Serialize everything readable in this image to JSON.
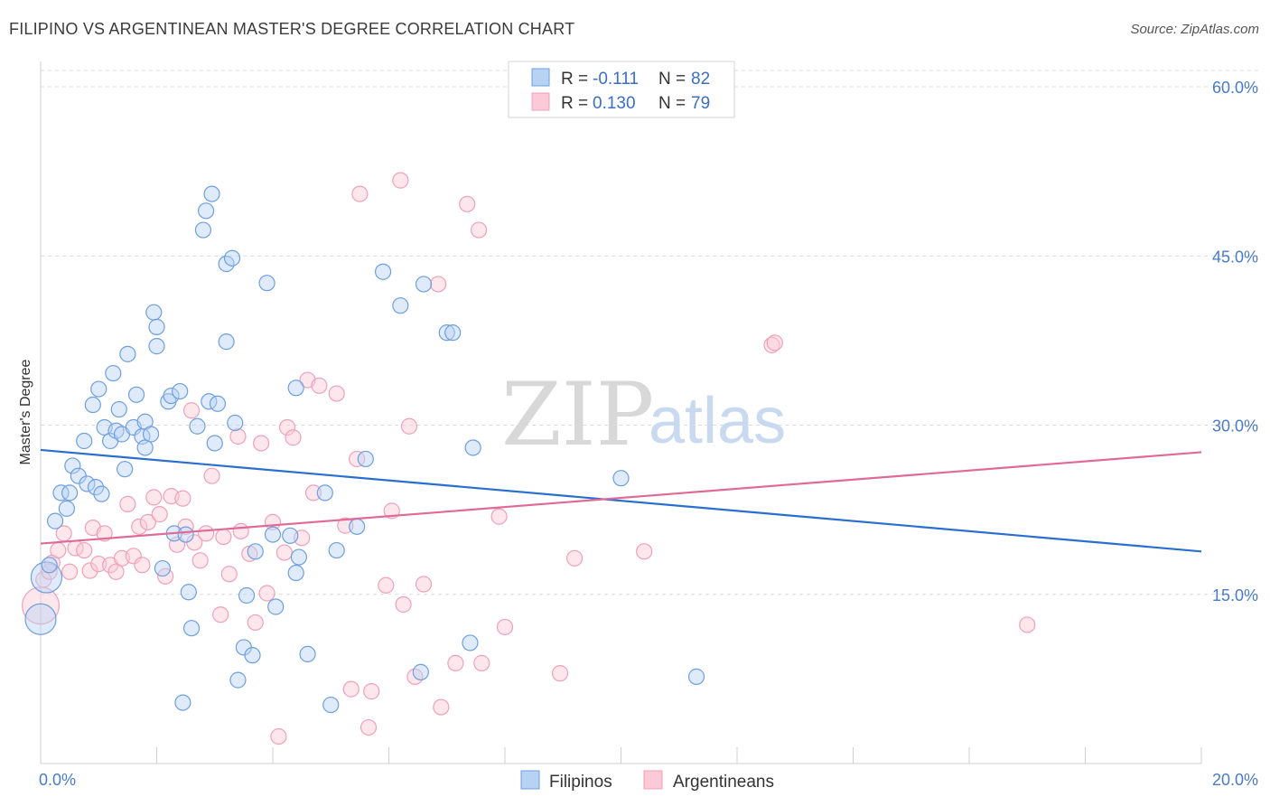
{
  "title": "FILIPINO VS ARGENTINEAN MASTER'S DEGREE CORRELATION CHART",
  "source": "Source: ZipAtlas.com",
  "chart_data": {
    "type": "scatter",
    "title": "FILIPINO VS ARGENTINEAN MASTER'S DEGREE CORRELATION CHART",
    "xlabel": "",
    "ylabel": "Master's Degree",
    "xlim": [
      0,
      20
    ],
    "ylim": [
      0,
      60
    ],
    "x_tick_labels": [
      "0.0%",
      "20.0%"
    ],
    "y_ticks": [
      15,
      30,
      45,
      60
    ],
    "y_tick_labels": [
      "15.0%",
      "30.0%",
      "45.0%",
      "60.0%"
    ],
    "grid": true,
    "legend_position": "top-center",
    "colors": {
      "filipinos": "#6e9fe0",
      "argentineans": "#f0a0ba",
      "filipinos_line": "#2a6fd0",
      "argentineans_line": "#e06a96"
    },
    "legend": [
      {
        "r_label": "R = ",
        "r_value": "-0.111",
        "n_label": "N = ",
        "n_value": "82"
      },
      {
        "r_label": "R = ",
        "r_value": "0.130",
        "n_label": "N = ",
        "n_value": "79"
      }
    ],
    "bottom_legend": [
      "Filipinos",
      "Argentineans"
    ],
    "watermark": {
      "zip": "ZIP",
      "atlas": "atlas"
    },
    "series": [
      {
        "name": "Filipinos",
        "trend": {
          "x": [
            0,
            20
          ],
          "y": [
            27.8,
            18.8
          ]
        },
        "points": [
          [
            0.0,
            12.8,
            2
          ],
          [
            0.1,
            16.5,
            2
          ],
          [
            0.15,
            17.6,
            1
          ],
          [
            0.25,
            21.5,
            1
          ],
          [
            0.35,
            24.0,
            1
          ],
          [
            0.45,
            22.6,
            1
          ],
          [
            0.5,
            24.0,
            1
          ],
          [
            0.55,
            26.4,
            1
          ],
          [
            0.65,
            25.5,
            1
          ],
          [
            0.75,
            28.6,
            1
          ],
          [
            0.8,
            24.8,
            1
          ],
          [
            0.9,
            31.8,
            1
          ],
          [
            0.95,
            24.5,
            1
          ],
          [
            1.0,
            33.2,
            1
          ],
          [
            1.05,
            23.9,
            1
          ],
          [
            1.1,
            29.8,
            1
          ],
          [
            1.2,
            28.6,
            1
          ],
          [
            1.25,
            34.6,
            1
          ],
          [
            1.3,
            29.5,
            1
          ],
          [
            1.35,
            31.4,
            1
          ],
          [
            1.4,
            29.2,
            1
          ],
          [
            1.45,
            26.1,
            1
          ],
          [
            1.5,
            36.3,
            1
          ],
          [
            1.6,
            29.8,
            1
          ],
          [
            1.65,
            32.7,
            1
          ],
          [
            1.75,
            29.0,
            1
          ],
          [
            1.8,
            28.0,
            1
          ],
          [
            1.8,
            30.3,
            1
          ],
          [
            1.9,
            29.2,
            1
          ],
          [
            1.95,
            40.0,
            1
          ],
          [
            2.0,
            37.0,
            1
          ],
          [
            2.0,
            38.7,
            1
          ],
          [
            2.1,
            17.3,
            1
          ],
          [
            2.2,
            32.1,
            1
          ],
          [
            2.25,
            32.6,
            1
          ],
          [
            2.3,
            20.4,
            1
          ],
          [
            2.4,
            33.0,
            1
          ],
          [
            2.45,
            5.4,
            1
          ],
          [
            2.5,
            20.3,
            1
          ],
          [
            2.55,
            15.2,
            1
          ],
          [
            2.6,
            12.0,
            1
          ],
          [
            2.7,
            29.9,
            1
          ],
          [
            2.8,
            47.3,
            1
          ],
          [
            2.85,
            49.0,
            1
          ],
          [
            2.9,
            32.1,
            1
          ],
          [
            2.95,
            50.5,
            1
          ],
          [
            3.0,
            28.4,
            1
          ],
          [
            3.05,
            31.9,
            1
          ],
          [
            3.2,
            37.4,
            1
          ],
          [
            3.2,
            44.3,
            1
          ],
          [
            3.3,
            44.8,
            1
          ],
          [
            3.35,
            30.2,
            1
          ],
          [
            3.4,
            7.4,
            1
          ],
          [
            3.5,
            10.3,
            1
          ],
          [
            3.55,
            14.9,
            1
          ],
          [
            3.65,
            9.6,
            1
          ],
          [
            3.7,
            18.8,
            1
          ],
          [
            3.9,
            42.6,
            1
          ],
          [
            4.0,
            20.3,
            1
          ],
          [
            4.05,
            13.9,
            1
          ],
          [
            4.3,
            20.2,
            1
          ],
          [
            4.4,
            16.9,
            1
          ],
          [
            4.4,
            33.3,
            1
          ],
          [
            4.45,
            18.3,
            1
          ],
          [
            4.6,
            9.7,
            1
          ],
          [
            4.9,
            24.0,
            1
          ],
          [
            5.0,
            5.2,
            1
          ],
          [
            5.1,
            18.9,
            1
          ],
          [
            5.45,
            21.0,
            1
          ],
          [
            5.6,
            27.0,
            1
          ],
          [
            5.9,
            43.6,
            1
          ],
          [
            6.2,
            40.6,
            1
          ],
          [
            6.55,
            8.1,
            1
          ],
          [
            6.6,
            42.5,
            1
          ],
          [
            7.0,
            38.2,
            1
          ],
          [
            7.1,
            38.2,
            1
          ],
          [
            7.4,
            10.7,
            1
          ],
          [
            7.45,
            28.0,
            1
          ],
          [
            10.0,
            25.3,
            1
          ],
          [
            11.3,
            7.7,
            1
          ]
        ]
      },
      {
        "name": "Argentineans",
        "trend": {
          "x": [
            0,
            20
          ],
          "y": [
            19.5,
            27.6
          ]
        },
        "points": [
          [
            0.0,
            14.0,
            2.4
          ],
          [
            0.05,
            16.3,
            1
          ],
          [
            0.15,
            17.0,
            1
          ],
          [
            0.2,
            17.8,
            1
          ],
          [
            0.3,
            18.9,
            1
          ],
          [
            0.4,
            20.4,
            1
          ],
          [
            0.5,
            17.0,
            1
          ],
          [
            0.6,
            19.1,
            1
          ],
          [
            0.75,
            18.9,
            1
          ],
          [
            0.85,
            17.1,
            1
          ],
          [
            0.9,
            20.9,
            1
          ],
          [
            1.0,
            17.7,
            1
          ],
          [
            1.1,
            20.4,
            1
          ],
          [
            1.2,
            17.6,
            1
          ],
          [
            1.3,
            17.0,
            1
          ],
          [
            1.4,
            18.2,
            1
          ],
          [
            1.5,
            23.0,
            1
          ],
          [
            1.6,
            18.4,
            1
          ],
          [
            1.7,
            21.0,
            1
          ],
          [
            1.75,
            17.6,
            1
          ],
          [
            1.85,
            21.4,
            1
          ],
          [
            1.95,
            23.6,
            1
          ],
          [
            2.05,
            22.1,
            1
          ],
          [
            2.15,
            16.6,
            1
          ],
          [
            2.25,
            23.7,
            1
          ],
          [
            2.35,
            19.4,
            1
          ],
          [
            2.45,
            23.5,
            1
          ],
          [
            2.5,
            21.0,
            1
          ],
          [
            2.6,
            31.3,
            1
          ],
          [
            2.65,
            19.6,
            1
          ],
          [
            2.75,
            18.0,
            1
          ],
          [
            2.85,
            20.4,
            1
          ],
          [
            2.95,
            25.5,
            1
          ],
          [
            3.1,
            13.2,
            1
          ],
          [
            3.15,
            20.1,
            1
          ],
          [
            3.25,
            16.8,
            1
          ],
          [
            3.4,
            29.0,
            1
          ],
          [
            3.45,
            20.6,
            1
          ],
          [
            3.6,
            18.6,
            1
          ],
          [
            3.7,
            12.5,
            1
          ],
          [
            3.8,
            28.4,
            1
          ],
          [
            3.9,
            15.1,
            1
          ],
          [
            4.0,
            21.4,
            1
          ],
          [
            4.1,
            2.4,
            1
          ],
          [
            4.2,
            18.7,
            1
          ],
          [
            4.25,
            29.8,
            1
          ],
          [
            4.35,
            28.9,
            1
          ],
          [
            4.5,
            20.0,
            1
          ],
          [
            4.6,
            34.0,
            1
          ],
          [
            4.7,
            24.0,
            1
          ],
          [
            4.8,
            33.5,
            1
          ],
          [
            5.1,
            32.8,
            1
          ],
          [
            5.25,
            21.1,
            1
          ],
          [
            5.35,
            6.6,
            1
          ],
          [
            5.45,
            27.0,
            1
          ],
          [
            5.5,
            50.5,
            1
          ],
          [
            5.65,
            3.2,
            1
          ],
          [
            5.7,
            6.4,
            1
          ],
          [
            5.95,
            15.8,
            1
          ],
          [
            6.05,
            22.4,
            1
          ],
          [
            6.2,
            51.7,
            1
          ],
          [
            6.25,
            14.1,
            1
          ],
          [
            6.35,
            29.9,
            1
          ],
          [
            6.45,
            7.7,
            1
          ],
          [
            6.6,
            15.9,
            1
          ],
          [
            6.85,
            42.5,
            1
          ],
          [
            6.9,
            5.0,
            1
          ],
          [
            7.15,
            8.9,
            1
          ],
          [
            7.35,
            49.6,
            1
          ],
          [
            7.55,
            47.3,
            1
          ],
          [
            7.6,
            8.9,
            1
          ],
          [
            7.9,
            21.9,
            1
          ],
          [
            8.0,
            12.1,
            1
          ],
          [
            8.95,
            8.0,
            1
          ],
          [
            9.2,
            18.2,
            1
          ],
          [
            10.4,
            18.8,
            1
          ],
          [
            12.6,
            37.1,
            1
          ],
          [
            12.65,
            37.3,
            1
          ],
          [
            17.0,
            12.3,
            1
          ]
        ]
      }
    ]
  }
}
